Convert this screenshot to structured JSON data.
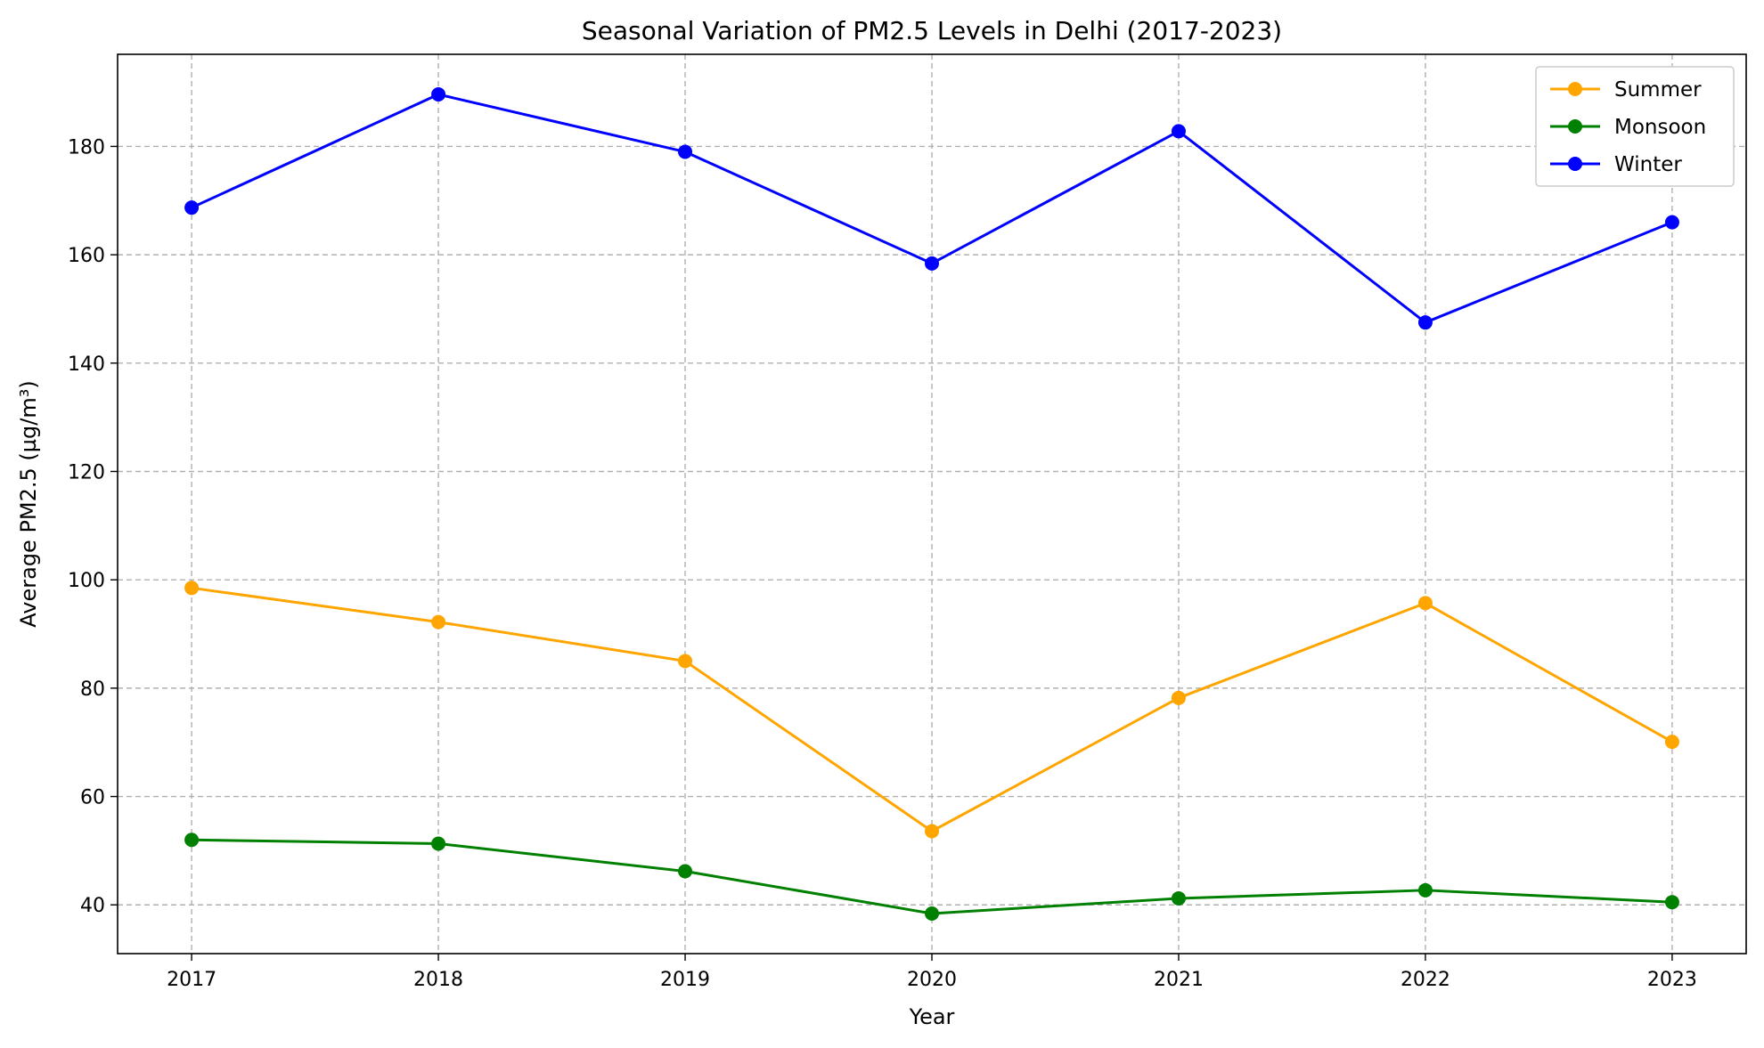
{
  "chart_data": {
    "type": "line",
    "title": "Seasonal Variation of PM2.5 Levels in Delhi (2017-2023)",
    "xlabel": "Year",
    "ylabel": "Average PM2.5 (µg/m³)",
    "x": [
      "2017",
      "2018",
      "2019",
      "2020",
      "2021",
      "2022",
      "2023"
    ],
    "yticks": [
      40,
      60,
      80,
      100,
      120,
      140,
      160,
      180
    ],
    "xlim": [
      2016.7,
      2023.3
    ],
    "ylim": [
      31,
      197
    ],
    "grid": true,
    "legend_position": "top-right",
    "series": [
      {
        "name": "Summer",
        "color": "#FFA500",
        "marker": "circle",
        "values": [
          98.5,
          92.2,
          85.0,
          53.6,
          78.2,
          95.7,
          70.1
        ]
      },
      {
        "name": "Monsoon",
        "color": "#008000",
        "marker": "circle",
        "values": [
          52.0,
          51.3,
          46.2,
          38.4,
          41.2,
          42.7,
          40.5
        ]
      },
      {
        "name": "Winter",
        "color": "#0000FF",
        "marker": "circle",
        "values": [
          168.7,
          189.6,
          179.0,
          158.4,
          182.8,
          147.5,
          166.0
        ]
      }
    ]
  }
}
